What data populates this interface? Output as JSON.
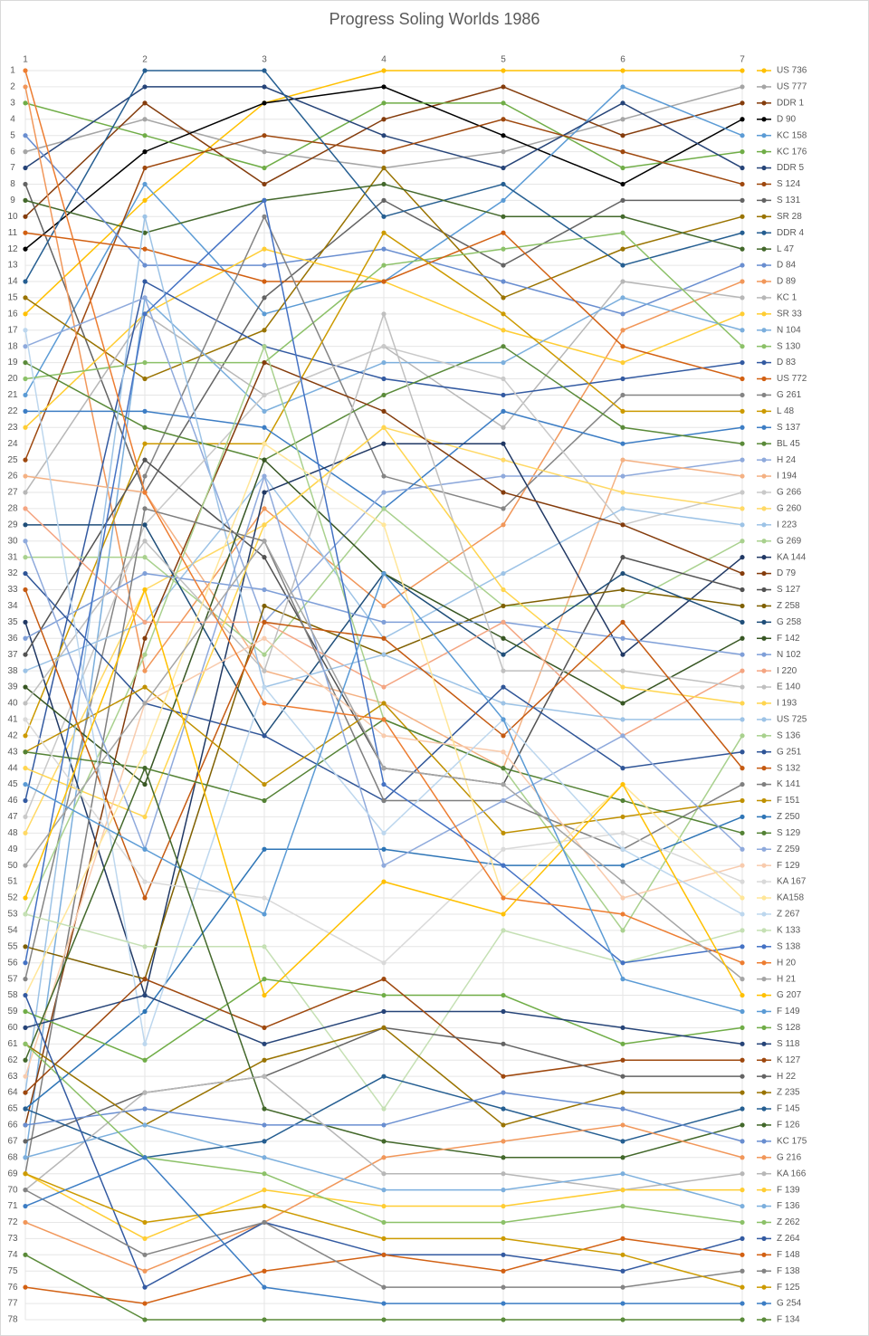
{
  "chart_data": {
    "type": "line",
    "title": "Progress Soling Worlds 1986",
    "categories": [
      "1",
      "2",
      "3",
      "4",
      "5",
      "6",
      "7"
    ],
    "ylim": [
      1,
      78
    ],
    "y_reversed": true,
    "grid": true,
    "legend": "right",
    "yticks": [
      1,
      2,
      3,
      4,
      5,
      6,
      7,
      8,
      9,
      10,
      11,
      12,
      13,
      14,
      15,
      16,
      17,
      18,
      19,
      20,
      21,
      22,
      23,
      24,
      25,
      26,
      27,
      28,
      29,
      30,
      31,
      32,
      33,
      34,
      35,
      36,
      37,
      38,
      39,
      40,
      41,
      42,
      43,
      44,
      45,
      46,
      47,
      48,
      49,
      50,
      51,
      52,
      53,
      54,
      55,
      56,
      57,
      58,
      59,
      60,
      61,
      62,
      63,
      64,
      65,
      66,
      67,
      68,
      69,
      70,
      71,
      72,
      73,
      74,
      75,
      76,
      77,
      78
    ],
    "series": [
      {
        "name": "US 736",
        "color": "#ffc000",
        "values": [
          16,
          9,
          3,
          1,
          1,
          1,
          1
        ]
      },
      {
        "name": "US 777",
        "color": "#a5a5a5",
        "values": [
          6,
          4,
          6,
          7,
          6,
          4,
          2
        ]
      },
      {
        "name": "DDR 1",
        "color": "#843c0c",
        "values": [
          10,
          3,
          8,
          4,
          2,
          5,
          3
        ]
      },
      {
        "name": "D 90",
        "color": "#000000",
        "values": [
          12,
          6,
          3,
          2,
          5,
          8,
          4
        ]
      },
      {
        "name": "KC 158",
        "color": "#5b9bd5",
        "values": [
          21,
          8,
          16,
          14,
          9,
          2,
          5
        ]
      },
      {
        "name": "KC 176",
        "color": "#70ad47",
        "values": [
          3,
          5,
          7,
          3,
          3,
          7,
          6
        ]
      },
      {
        "name": "DDR 5",
        "color": "#264478",
        "values": [
          7,
          2,
          2,
          5,
          7,
          3,
          7
        ]
      },
      {
        "name": "S 124",
        "color": "#9e480e",
        "values": [
          25,
          7,
          5,
          6,
          4,
          6,
          8
        ]
      },
      {
        "name": "S 131",
        "color": "#636363",
        "values": [
          8,
          27,
          15,
          9,
          13,
          9,
          9
        ]
      },
      {
        "name": "SR 28",
        "color": "#997300",
        "values": [
          15,
          20,
          17,
          7,
          15,
          12,
          10
        ]
      },
      {
        "name": "DDR 4",
        "color": "#255e91",
        "values": [
          14,
          1,
          1,
          10,
          8,
          13,
          11
        ]
      },
      {
        "name": "L 47",
        "color": "#43682b",
        "values": [
          9,
          11,
          9,
          8,
          10,
          10,
          12
        ]
      },
      {
        "name": "D 84",
        "color": "#698ed0",
        "values": [
          5,
          13,
          13,
          12,
          14,
          16,
          13
        ]
      },
      {
        "name": "D 89",
        "color": "#f1975a",
        "values": [
          2,
          38,
          28,
          34,
          29,
          17,
          14
        ]
      },
      {
        "name": "KC 1",
        "color": "#b7b7b7",
        "values": [
          27,
          16,
          21,
          18,
          23,
          14,
          15
        ]
      },
      {
        "name": "SR 33",
        "color": "#ffcd33",
        "values": [
          23,
          16,
          12,
          14,
          17,
          19,
          16
        ]
      },
      {
        "name": "N 104",
        "color": "#7cafdd",
        "values": [
          68,
          15,
          22,
          19,
          19,
          15,
          17
        ]
      },
      {
        "name": "S 130",
        "color": "#8cc168",
        "values": [
          20,
          19,
          19,
          13,
          12,
          11,
          18
        ]
      },
      {
        "name": "D 83",
        "color": "#335aa1",
        "values": [
          46,
          14,
          18,
          20,
          21,
          20,
          19
        ]
      },
      {
        "name": "US 772",
        "color": "#d26012",
        "values": [
          11,
          12,
          14,
          14,
          11,
          18,
          20
        ]
      },
      {
        "name": "G 261",
        "color": "#848484",
        "values": [
          57,
          26,
          10,
          26,
          28,
          21,
          21
        ]
      },
      {
        "name": "L 48",
        "color": "#cc9a00",
        "values": [
          42,
          24,
          24,
          11,
          16,
          22,
          22
        ]
      },
      {
        "name": "S 137",
        "color": "#3c7dc4",
        "values": [
          22,
          22,
          23,
          28,
          22,
          24,
          23
        ]
      },
      {
        "name": "BL 45",
        "color": "#5a8a39",
        "values": [
          19,
          23,
          25,
          21,
          18,
          23,
          24
        ]
      },
      {
        "name": "H 24",
        "color": "#8faadc",
        "values": [
          18,
          15,
          35,
          27,
          26,
          26,
          25
        ]
      },
      {
        "name": "I 194",
        "color": "#f4b183",
        "values": [
          26,
          27,
          38,
          40,
          44,
          25,
          26
        ]
      },
      {
        "name": "G 266",
        "color": "#c9c9c9",
        "values": [
          47,
          29,
          21,
          18,
          20,
          29,
          27
        ]
      },
      {
        "name": "G 260",
        "color": "#ffd966",
        "values": [
          48,
          33,
          29,
          23,
          25,
          27,
          28
        ]
      },
      {
        "name": "I 223",
        "color": "#9dc3e6",
        "values": [
          38,
          35,
          26,
          36,
          32,
          28,
          29
        ]
      },
      {
        "name": "G 269",
        "color": "#a9d18e",
        "values": [
          31,
          31,
          37,
          28,
          34,
          34,
          30
        ]
      },
      {
        "name": "KA 144",
        "color": "#203864",
        "values": [
          35,
          58,
          27,
          24,
          24,
          37,
          31
        ]
      },
      {
        "name": "D 79",
        "color": "#843c0c",
        "values": [
          66,
          36,
          19,
          22,
          27,
          29,
          32
        ]
      },
      {
        "name": "S 127",
        "color": "#525252",
        "values": [
          37,
          25,
          31,
          44,
          45,
          31,
          33
        ]
      },
      {
        "name": "Z 258",
        "color": "#7f6000",
        "values": [
          55,
          57,
          34,
          37,
          34,
          33,
          34
        ]
      },
      {
        "name": "G 258",
        "color": "#1f4e79",
        "values": [
          29,
          29,
          42,
          32,
          37,
          32,
          35
        ]
      },
      {
        "name": "F 142",
        "color": "#375623",
        "values": [
          39,
          45,
          25,
          32,
          36,
          40,
          36
        ]
      },
      {
        "name": "N 102",
        "color": "#7f9fd8",
        "values": [
          36,
          32,
          33,
          35,
          35,
          36,
          37
        ]
      },
      {
        "name": "I 220",
        "color": "#f4a582",
        "values": [
          28,
          35,
          35,
          39,
          35,
          42,
          38
        ]
      },
      {
        "name": "E 140",
        "color": "#c0c0c0",
        "values": [
          40,
          30,
          38,
          16,
          38,
          38,
          39
        ]
      },
      {
        "name": "I 193",
        "color": "#ffd54f",
        "values": [
          44,
          47,
          29,
          23,
          33,
          39,
          40
        ]
      },
      {
        "name": "US 725",
        "color": "#9dc3e6",
        "values": [
          64,
          10,
          39,
          37,
          40,
          41,
          41
        ]
      },
      {
        "name": "S 136",
        "color": "#a9d18e",
        "values": [
          53,
          37,
          18,
          41,
          44,
          54,
          42
        ]
      },
      {
        "name": "G 251",
        "color": "#2f5597",
        "values": [
          32,
          40,
          42,
          46,
          39,
          44,
          43
        ]
      },
      {
        "name": "S 132",
        "color": "#c55a11",
        "values": [
          33,
          52,
          35,
          36,
          42,
          35,
          44
        ]
      },
      {
        "name": "K 141",
        "color": "#7f7f7f",
        "values": [
          69,
          28,
          30,
          46,
          46,
          49,
          45
        ]
      },
      {
        "name": "F 151",
        "color": "#bf9000",
        "values": [
          43,
          39,
          45,
          40,
          48,
          47,
          46
        ]
      },
      {
        "name": "Z 250",
        "color": "#2e75b6",
        "values": [
          65,
          59,
          49,
          49,
          50,
          50,
          47
        ]
      },
      {
        "name": "S 129",
        "color": "#548235",
        "values": [
          43,
          44,
          46,
          41,
          44,
          46,
          48
        ]
      },
      {
        "name": "Z 259",
        "color": "#8faadc",
        "values": [
          30,
          49,
          26,
          50,
          46,
          42,
          49
        ]
      },
      {
        "name": "F 129",
        "color": "#f8cbad",
        "values": [
          63,
          40,
          36,
          42,
          43,
          52,
          50
        ]
      },
      {
        "name": "KA 167",
        "color": "#d9d9d9",
        "values": [
          41,
          51,
          52,
          56,
          49,
          48,
          51
        ]
      },
      {
        "name": "KA158",
        "color": "#ffe699",
        "values": [
          58,
          43,
          24,
          29,
          52,
          45,
          52
        ]
      },
      {
        "name": "Z 267",
        "color": "#bdd7ee",
        "values": [
          17,
          61,
          39,
          48,
          41,
          49,
          53
        ]
      },
      {
        "name": "K 133",
        "color": "#c5e0b4",
        "values": [
          53,
          55,
          55,
          65,
          54,
          56,
          54
        ]
      },
      {
        "name": "S 138",
        "color": "#4472c4",
        "values": [
          56,
          16,
          9,
          45,
          50,
          56,
          55
        ]
      },
      {
        "name": "H 20",
        "color": "#ed7d31",
        "values": [
          1,
          27,
          40,
          41,
          52,
          53,
          56
        ]
      },
      {
        "name": "H 21",
        "color": "#a5a5a5",
        "values": [
          50,
          40,
          30,
          44,
          45,
          51,
          57
        ]
      },
      {
        "name": "G 207",
        "color": "#ffc000",
        "values": [
          52,
          33,
          58,
          51,
          53,
          45,
          58
        ]
      },
      {
        "name": "F 149",
        "color": "#5b9bd5",
        "values": [
          45,
          49,
          53,
          32,
          41,
          57,
          59
        ]
      },
      {
        "name": "S 128",
        "color": "#70ad47",
        "values": [
          59,
          62,
          57,
          58,
          58,
          61,
          60
        ]
      },
      {
        "name": "S 118",
        "color": "#264478",
        "values": [
          60,
          58,
          61,
          59,
          59,
          60,
          61
        ]
      },
      {
        "name": "K 127",
        "color": "#9e480e",
        "values": [
          64,
          57,
          60,
          57,
          63,
          62,
          62
        ]
      },
      {
        "name": "H 22",
        "color": "#636363",
        "values": [
          67,
          64,
          63,
          60,
          61,
          63,
          63
        ]
      },
      {
        "name": "Z 235",
        "color": "#997300",
        "values": [
          61,
          66,
          62,
          60,
          66,
          64,
          64
        ]
      },
      {
        "name": "F 145",
        "color": "#255e91",
        "values": [
          65,
          68,
          67,
          63,
          65,
          67,
          65
        ]
      },
      {
        "name": "F 126",
        "color": "#43682b",
        "values": [
          62,
          44,
          65,
          67,
          68,
          68,
          66
        ]
      },
      {
        "name": "KC 175",
        "color": "#698ed0",
        "values": [
          66,
          65,
          66,
          66,
          64,
          65,
          67
        ]
      },
      {
        "name": "G 216",
        "color": "#f1975a",
        "values": [
          72,
          75,
          72,
          68,
          67,
          66,
          68
        ]
      },
      {
        "name": "KA 166",
        "color": "#b7b7b7",
        "values": [
          70,
          64,
          63,
          69,
          69,
          70,
          69
        ]
      },
      {
        "name": "F 139",
        "color": "#ffcd33",
        "values": [
          69,
          73,
          70,
          71,
          71,
          70,
          70
        ]
      },
      {
        "name": "F 136",
        "color": "#7cafdd",
        "values": [
          68,
          66,
          68,
          70,
          70,
          69,
          71
        ]
      },
      {
        "name": "Z 262",
        "color": "#8cc168",
        "values": [
          61,
          68,
          69,
          72,
          72,
          71,
          72
        ]
      },
      {
        "name": "Z 264",
        "color": "#335aa1",
        "values": [
          58,
          76,
          72,
          74,
          74,
          75,
          73
        ]
      },
      {
        "name": "F 148",
        "color": "#d26012",
        "values": [
          76,
          77,
          75,
          74,
          75,
          73,
          74
        ]
      },
      {
        "name": "F 138",
        "color": "#848484",
        "values": [
          70,
          74,
          72,
          76,
          76,
          76,
          75
        ]
      },
      {
        "name": "F 125",
        "color": "#cc9a00",
        "values": [
          69,
          72,
          71,
          73,
          73,
          74,
          76
        ]
      },
      {
        "name": "G 254",
        "color": "#3c7dc4",
        "values": [
          71,
          68,
          76,
          77,
          77,
          77,
          77
        ]
      },
      {
        "name": "F 134",
        "color": "#5a8a39",
        "values": [
          74,
          78,
          78,
          78,
          78,
          78,
          78
        ]
      }
    ]
  }
}
